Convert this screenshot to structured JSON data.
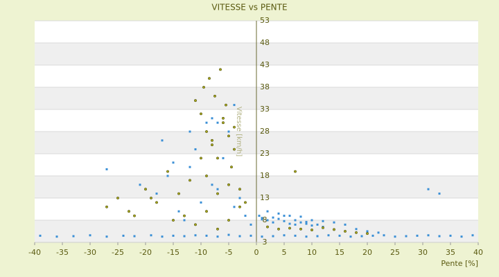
{
  "chart_data": {
    "type": "scatter",
    "title": "VITESSE vs PENTE",
    "x_label": "Pente [%]",
    "y_label": "Vitesse [km/h]",
    "xlim": [
      -40,
      40
    ],
    "xticks": [
      -40,
      -35,
      -30,
      -25,
      -20,
      -15,
      -10,
      -5,
      0,
      5,
      10,
      15,
      20,
      25,
      30,
      35,
      40
    ],
    "ylim": [
      3,
      53
    ],
    "yticks": [
      3,
      8,
      13,
      18,
      23,
      28,
      33,
      38,
      43,
      48,
      53
    ],
    "grid": true,
    "series": [
      {
        "color": "#3a8fd6",
        "x": [
          -39,
          -36,
          -33,
          -30,
          -27,
          -24,
          -22,
          -19,
          -17,
          -15,
          -13,
          -11,
          -9,
          -7,
          -5,
          -3,
          -1,
          1,
          3,
          5,
          7,
          9,
          11,
          13,
          15,
          17,
          19,
          21,
          23,
          25,
          27,
          29,
          31,
          33,
          35,
          37,
          39,
          -18,
          -16,
          -14,
          -12,
          -10,
          -8,
          -6,
          -4,
          -2,
          -17,
          -15,
          -13,
          -11,
          -9,
          -7,
          -5,
          -3,
          -1,
          -27,
          -21,
          -12,
          -8,
          0.5,
          1,
          2,
          3,
          4,
          5,
          6,
          7,
          8,
          9,
          10,
          11,
          12,
          2,
          4,
          6,
          8,
          10,
          12,
          14,
          16,
          18,
          20,
          22,
          1,
          3,
          5,
          7,
          9,
          31,
          33,
          -4,
          -7
        ],
        "values": [
          4.5,
          4.3,
          4.4,
          4.6,
          4.3,
          4.5,
          4.4,
          4.6,
          4.3,
          4.5,
          4.4,
          4.6,
          4.5,
          4.3,
          4.7,
          4.4,
          4.5,
          4.3,
          4.4,
          4.6,
          4.5,
          4.3,
          4.4,
          4.6,
          4.5,
          4.3,
          4.4,
          4.5,
          4.6,
          4.3,
          4.4,
          4.5,
          4.6,
          4.4,
          4.5,
          4.3,
          4.6,
          14,
          18,
          10,
          20,
          12,
          16,
          22,
          11,
          9,
          26,
          21,
          8,
          24,
          30,
          15,
          28,
          13,
          7,
          19.5,
          16,
          28,
          31,
          9,
          8.5,
          8,
          7.5,
          8.3,
          7.8,
          7.2,
          7,
          7.5,
          7.2,
          6.8,
          7,
          6.5,
          10,
          9.5,
          9,
          8.8,
          8,
          7.8,
          7.5,
          7,
          6,
          5.5,
          5.2,
          8.2,
          8.6,
          9,
          8,
          7.6,
          15,
          14,
          34,
          30
        ]
      },
      {
        "color": "#a8a820",
        "x": [
          -27,
          -25,
          -23,
          -20,
          -18,
          -16,
          -14,
          -12,
          -11,
          -10,
          -9.5,
          -9,
          -8.5,
          -8,
          -7.5,
          -7,
          -6.5,
          -6,
          -5.5,
          -5,
          -4.5,
          -4,
          -3,
          -2,
          -10,
          -9,
          -8,
          -7,
          -6,
          -5,
          -4,
          -15,
          -13,
          -11,
          -9,
          -7,
          -5,
          -3,
          2,
          4,
          6,
          8,
          10,
          12,
          14,
          16,
          18,
          20,
          7,
          -22,
          -19
        ],
        "values": [
          11,
          13,
          10,
          15,
          12,
          19,
          14,
          17,
          35,
          32,
          38,
          28,
          40,
          25,
          36,
          22,
          42,
          30,
          34,
          27,
          20,
          24,
          15,
          12,
          22,
          18,
          26,
          14,
          31,
          16,
          29,
          8,
          9,
          7,
          10,
          6,
          8,
          11,
          6.5,
          6,
          6.2,
          6,
          5.8,
          6.3,
          5.9,
          5.5,
          5.2,
          5,
          19,
          9,
          13
        ]
      }
    ]
  }
}
